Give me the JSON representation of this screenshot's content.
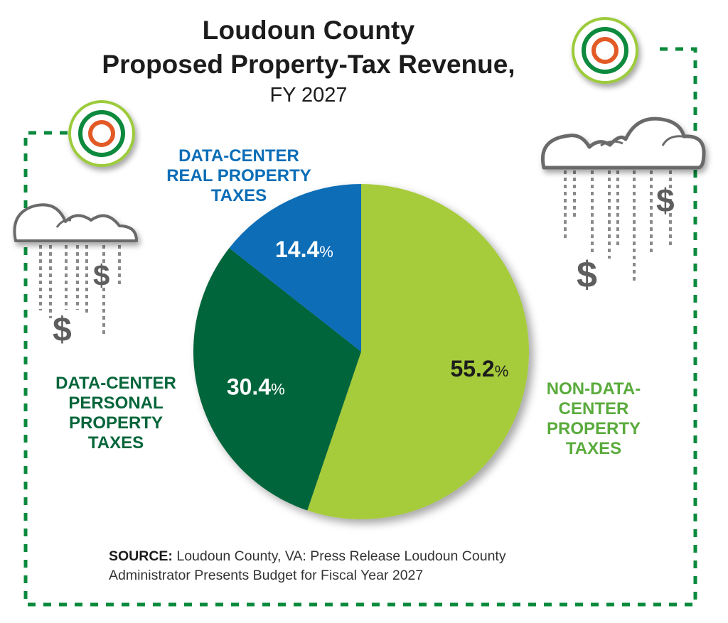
{
  "header": {
    "title_line1": "Loudoun County",
    "title_line2": "Proposed Property-Tax Revenue,",
    "subtitle": "FY 2027"
  },
  "chart_data": {
    "type": "pie",
    "title": "Loudoun County Proposed Property-Tax Revenue, FY 2027",
    "start_angle": "12 o'clock",
    "direction": "clockwise",
    "slices": [
      {
        "name": "Non-Data-Center Property Taxes",
        "label_lines": [
          "NON-DATA-",
          "CENTER",
          "PROPERTY",
          "TAXES"
        ],
        "value": 55.2,
        "display": "55.2",
        "color": "#a6cb3a",
        "label_color": "#5aab3c",
        "value_color": "#1c1c1c"
      },
      {
        "name": "Data-Center Personal Property Taxes",
        "label_lines": [
          "DATA-CENTER",
          "PERSONAL",
          "PROPERTY",
          "TAXES"
        ],
        "value": 30.4,
        "display": "30.4",
        "color": "#05653a",
        "label_color": "#05653a",
        "value_color": "#ffffff"
      },
      {
        "name": "Data-Center Real Property Taxes",
        "label_lines": [
          "DATA-CENTER",
          "REAL PROPERTY",
          "TAXES"
        ],
        "value": 14.4,
        "display": "14.4",
        "color": "#0a6db7",
        "label_color": "#0a6db7",
        "value_color": "#ffffff"
      }
    ],
    "percent_sign": "%",
    "unit": "percent"
  },
  "source": {
    "label": "SOURCE:",
    "text_line1": "Loudoun County, VA: Press Release Loudoun County",
    "text_line2": "Administrator Presents Budget for Fiscal Year 2027"
  },
  "decor": {
    "border_color": "#0a8a3c",
    "target_colors": {
      "outer": "#9ccb3b",
      "middle": "#0a8a3c",
      "inner": "#e25a26"
    },
    "cloud_color": "#6b6b6b",
    "rain_symbol": "$"
  }
}
